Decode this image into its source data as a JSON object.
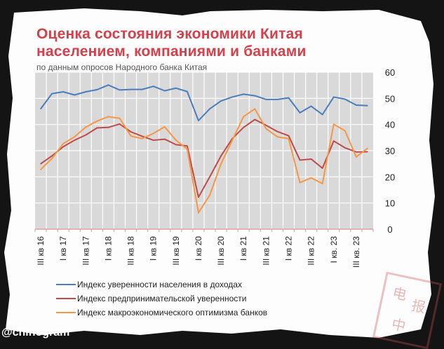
{
  "title_line1": "Оценка состояния экономики Китая",
  "title_line2": "населением, компаниями и банками",
  "subtitle": "по данным опросов Народного банка Китая",
  "watermark": "@chinogram",
  "stamp_text": "电报中",
  "chart_data": {
    "type": "line",
    "title": "Оценка состояния экономики Китая населением, компаниями и банками",
    "ylim": [
      0,
      60
    ],
    "yticks": [
      "0",
      "10",
      "20",
      "30",
      "40",
      "50",
      "60"
    ],
    "y_axis_side": "right",
    "grid": true,
    "legend_placement": "bottom",
    "tick_labels": [
      "III кв 16",
      "I кв 17",
      "III кв 17",
      "I кв 18",
      "III кв 18",
      "I кв 19",
      "III кв 19",
      "I кв 20",
      "III кв 20",
      "I кв 21",
      "III кв 21",
      "I кв 22",
      "III кв 22",
      "I кв. 23",
      "III кв. 23"
    ],
    "series": [
      {
        "name": "Индекс уверенности населения в доходах",
        "color": "#4a7ebb",
        "values": [
          46,
          51.8,
          52.5,
          51.3,
          52.5,
          53.3,
          55.1,
          53.2,
          53.4,
          53.4,
          54.6,
          52.9,
          53.9,
          52.6,
          41.5,
          46,
          49,
          50.5,
          51.6,
          51,
          49.6,
          49.6,
          50.2,
          44.5,
          47,
          43.8,
          50.5,
          49.7,
          47.4,
          47.2
        ]
      },
      {
        "name": "Индекс предпринимательской уверенности",
        "color": "#be4b48",
        "values": [
          25,
          28,
          31.5,
          34,
          36,
          38.7,
          38.9,
          40.2,
          37.2,
          35.5,
          34,
          34.4,
          32.3,
          31.8,
          12.2,
          20,
          28,
          34.6,
          38.9,
          41.9,
          39.7,
          37.3,
          35.7,
          26.4,
          26.8,
          23.3,
          33.7,
          31.1,
          29.5,
          29.6
        ]
      },
      {
        "name": "Индекс макроэкономического оптимизма банков",
        "color": "#f79646",
        "values": [
          22.8,
          27,
          32.7,
          35.3,
          39,
          41.3,
          43,
          42.4,
          35.6,
          34.6,
          36.6,
          39.1,
          34,
          30.6,
          6.3,
          13,
          25,
          34,
          43,
          46,
          38.4,
          35.3,
          34.6,
          17.8,
          19.6,
          17.4,
          40.1,
          37.6,
          27.6,
          30.9
        ]
      }
    ]
  }
}
